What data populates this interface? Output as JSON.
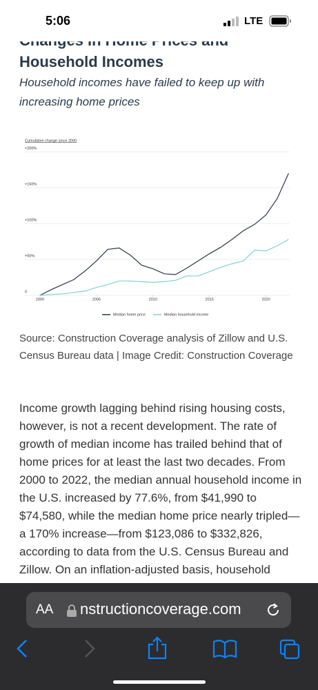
{
  "status_bar": {
    "time": "5:06",
    "network": "LTE"
  },
  "article": {
    "title_lines": [
      "Changes in Home Prices and",
      "Household Incomes"
    ],
    "subtitle": "Household incomes have failed to keep up with increasing home prices",
    "caption": "Source: Construction Coverage analysis of Zillow and U.S. Census Bureau data | Image Credit: Construction Coverage",
    "paragraph": "Income growth lagging behind rising housing costs, however, is not a recent development. The rate of growth of median income has trailed behind that of home prices for at least the last two decades. From 2000 to 2022, the median annual household income in the U.S. increased by 77.6%, from $41,990 to $74,580, while the median home price nearly tripled—a 170% increase—from $123,086 to $332,826, according to data from the U.S. Census Bureau and Zillow. On an inflation-adjusted basis, household"
  },
  "chart_data": {
    "type": "line",
    "y_label": "Cumulative change since 2000",
    "x": [
      2000,
      2001,
      2002,
      2003,
      2004,
      2005,
      2006,
      2007,
      2008,
      2009,
      2010,
      2011,
      2012,
      2013,
      2014,
      2015,
      2016,
      2017,
      2018,
      2019,
      2020,
      2021,
      2022
    ],
    "series": [
      {
        "name": "Median home price",
        "color": "#2b3445",
        "values": [
          0,
          8,
          15,
          22,
          34,
          48,
          64,
          66,
          56,
          42,
          37,
          30,
          29,
          38,
          48,
          58,
          67,
          78,
          90,
          99,
          112,
          135,
          170
        ]
      },
      {
        "name": "Median household income",
        "color": "#7fcfd3",
        "values": [
          0,
          1,
          2,
          4,
          6,
          11,
          15,
          20,
          20,
          19,
          18,
          19,
          21,
          27,
          27,
          33,
          39,
          44,
          48,
          63,
          62,
          69,
          78
        ]
      }
    ],
    "xlim": [
      1998.66,
      2022.1
    ],
    "xticks": [
      2000,
      2005,
      2010,
      2015,
      2020
    ],
    "ylim": [
      0,
      200
    ],
    "yticks": [
      0,
      {
        "value": 50,
        "label": "+50%"
      },
      {
        "value": 100,
        "label": "+100%"
      },
      {
        "value": 150,
        "label": "+150%"
      },
      {
        "value": 200,
        "label": "+200%"
      }
    ],
    "grid": true,
    "legend": "bottom"
  },
  "browser": {
    "text_size": "AA",
    "url": "nstructioncoverage.com"
  }
}
